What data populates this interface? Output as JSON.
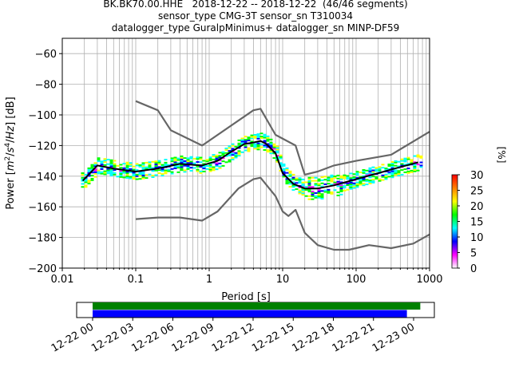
{
  "title": {
    "line1": "BK.BK70.00.HHE   2018-12-22 -- 2018-12-22  (46/46 segments)",
    "line2": "sensor_type CMG-3T sensor_sn T310034",
    "line3": "datalogger_type GuralpMinimus+ datalogger_sn MINP-DF59"
  },
  "chart_data": {
    "type": "line",
    "xlabel": "Period [s]",
    "ylabel_parts": [
      "Power [",
      "m",
      "2",
      "/",
      "s",
      "4",
      "/",
      "Hz",
      "] [dB]"
    ],
    "xscale": "log",
    "xlim": [
      0.01,
      1000
    ],
    "ylim": [
      -200,
      -50
    ],
    "xticks": [
      0.01,
      0.1,
      1,
      10,
      100,
      1000
    ],
    "xtick_labels": [
      "0.01",
      "0.1",
      "1",
      "10",
      "100",
      "1000"
    ],
    "yticks": [
      -200,
      -180,
      -160,
      -140,
      -120,
      -100,
      -80,
      -60
    ],
    "grid": true,
    "colorbar": {
      "label": "[%]",
      "ticks": [
        0,
        5,
        10,
        15,
        20,
        25,
        30
      ],
      "range": [
        0,
        30
      ],
      "colors": [
        "#ffffff",
        "#ff00ff",
        "#0000ff",
        "#00ffff",
        "#00ff00",
        "#ffff00",
        "#ff8000",
        "#ff0000"
      ]
    },
    "series": [
      {
        "color": "#666666",
        "x": [
          0.1,
          0.2,
          0.3,
          0.8,
          4,
          5,
          8,
          15,
          20,
          30,
          50,
          100,
          300,
          1000
        ],
        "y": [
          -91,
          -97,
          -110,
          -120,
          -97,
          -96,
          -113,
          -120,
          -139,
          -137,
          -133,
          -130,
          -126,
          -111
        ]
      },
      {
        "color": "#666666",
        "x": [
          0.1,
          0.2,
          0.4,
          0.8,
          1.3,
          2.5,
          4,
          5,
          8,
          10,
          12,
          15,
          20,
          30,
          50,
          80,
          100,
          150,
          300,
          600,
          1000
        ],
        "y": [
          -168,
          -167,
          -167,
          -169,
          -163,
          -148,
          -142,
          -141,
          -153,
          -163,
          -166,
          -162,
          -177,
          -185,
          -188,
          -188,
          -187,
          -185,
          -187,
          -184,
          -178
        ]
      },
      {
        "color": "#000000",
        "x": [
          0.019,
          0.025,
          0.03,
          0.05,
          0.1,
          0.2,
          0.4,
          0.8,
          1.3,
          2,
          3,
          4,
          5,
          6,
          8,
          10,
          14,
          20,
          30,
          50,
          100,
          200,
          400,
          700
        ],
        "y": [
          -143,
          -137,
          -133,
          -135,
          -137,
          -135,
          -132,
          -133,
          -130,
          -124,
          -119,
          -118,
          -117,
          -119,
          -125,
          -138,
          -145,
          -148,
          -148,
          -146,
          -142,
          -138,
          -134,
          -131
        ]
      }
    ],
    "availability": {
      "ticks": [
        "12-22 00",
        "12-22 03",
        "12-22 06",
        "12-22 09",
        "12-22 12",
        "12-22 15",
        "12-22 18",
        "12-22 21",
        "12-23 00"
      ],
      "bars": [
        {
          "color": "#008000",
          "start_hour": 0,
          "end_hour": 24.5
        },
        {
          "color": "#0000ff",
          "start_hour": 0,
          "end_hour": 23.5
        }
      ]
    }
  }
}
